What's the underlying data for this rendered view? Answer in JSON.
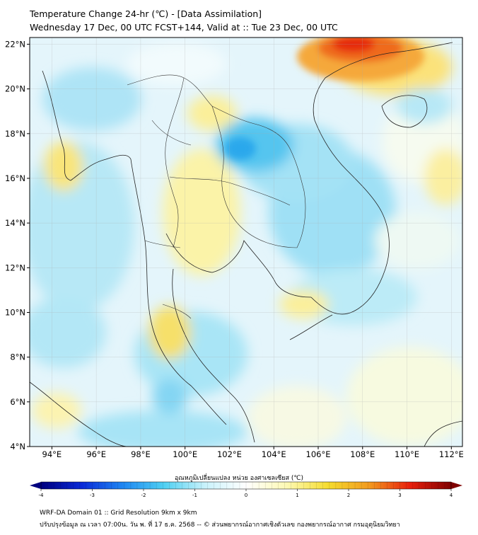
{
  "header": {
    "title": "Temperature Change 24-hr (℃) - [Data Assimilation]",
    "subtitle": "Wednesday 17 Dec, 00 UTC FCST+144, Valid at :: Tue 23 Dec, 00 UTC"
  },
  "map": {
    "lat_labels": [
      "22°N",
      "20°N",
      "18°N",
      "16°N",
      "14°N",
      "12°N",
      "10°N",
      "8°N",
      "6°N",
      "4°N"
    ],
    "lon_labels": [
      "94°E",
      "96°E",
      "98°E",
      "100°E",
      "102°E",
      "104°E",
      "106°E",
      "108°E",
      "110°E",
      "112°E"
    ],
    "lon_range": [
      93,
      112.5
    ],
    "lat_range": [
      4,
      22.3
    ],
    "grid": true
  },
  "colorbar": {
    "title": "อุณหภูมิเปลี่ยนแปลง หน่วย องศาเซลเซียส (℃)",
    "ticks": [
      "-4",
      "-3",
      "-2",
      "-1",
      "0",
      "1",
      "2",
      "3",
      "4"
    ],
    "min": -4,
    "max": 4,
    "colors": [
      "#00007f",
      "#0a2ad8",
      "#1f87f2",
      "#4fd0f2",
      "#c9f2fb",
      "#ffffff",
      "#fdf9b3",
      "#f5dc2e",
      "#f29a1f",
      "#e81f0c",
      "#800000"
    ]
  },
  "footer": {
    "line1": "WRF-DA Domain 01 :: Grid Resolution 9km x 9km",
    "line2": "ปรับปรุงข้อมูล ณ เวลา 07:00น. วัน พ. ที่ 17 ธ.ค. 2568 -- © ส่วนพยากรณ์อากาศเชิงตัวเลข กองพยากรณ์อากาศ กรมอุตุนิยมวิทยา"
  }
}
